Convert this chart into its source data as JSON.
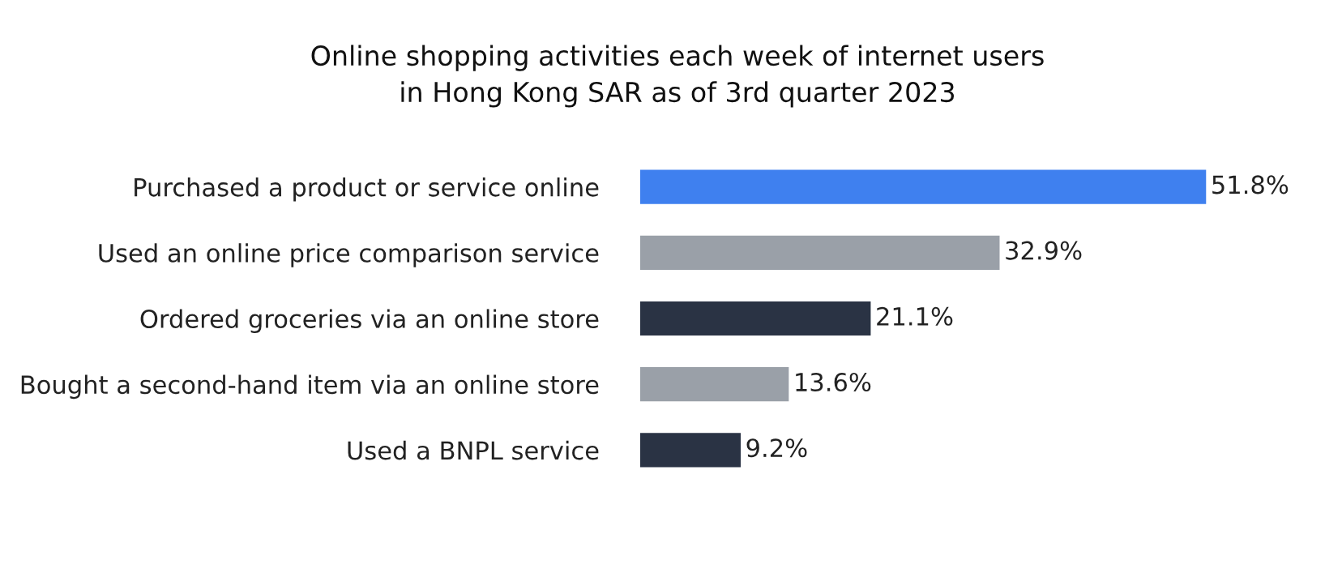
{
  "chart_data": {
    "type": "bar",
    "orientation": "horizontal",
    "title": "Online shopping activities each week of internet users\nin Hong Kong SAR as of 3rd quarter 2023",
    "categories": [
      "Purchased a product or service online",
      "Used an online price comparison service",
      "Ordered groceries via an online store",
      "Bought a second-hand item via an online store",
      "Used a BNPL service"
    ],
    "values": [
      51.8,
      32.9,
      21.1,
      13.6,
      9.2
    ],
    "colors": [
      "#3f80ef",
      "#9aa0a8",
      "#2a3344",
      "#9aa0a8",
      "#2a3344"
    ],
    "value_labels": [
      "51.8%",
      "32.9%",
      "21.1%",
      "13.6%",
      "9.2%"
    ]
  }
}
